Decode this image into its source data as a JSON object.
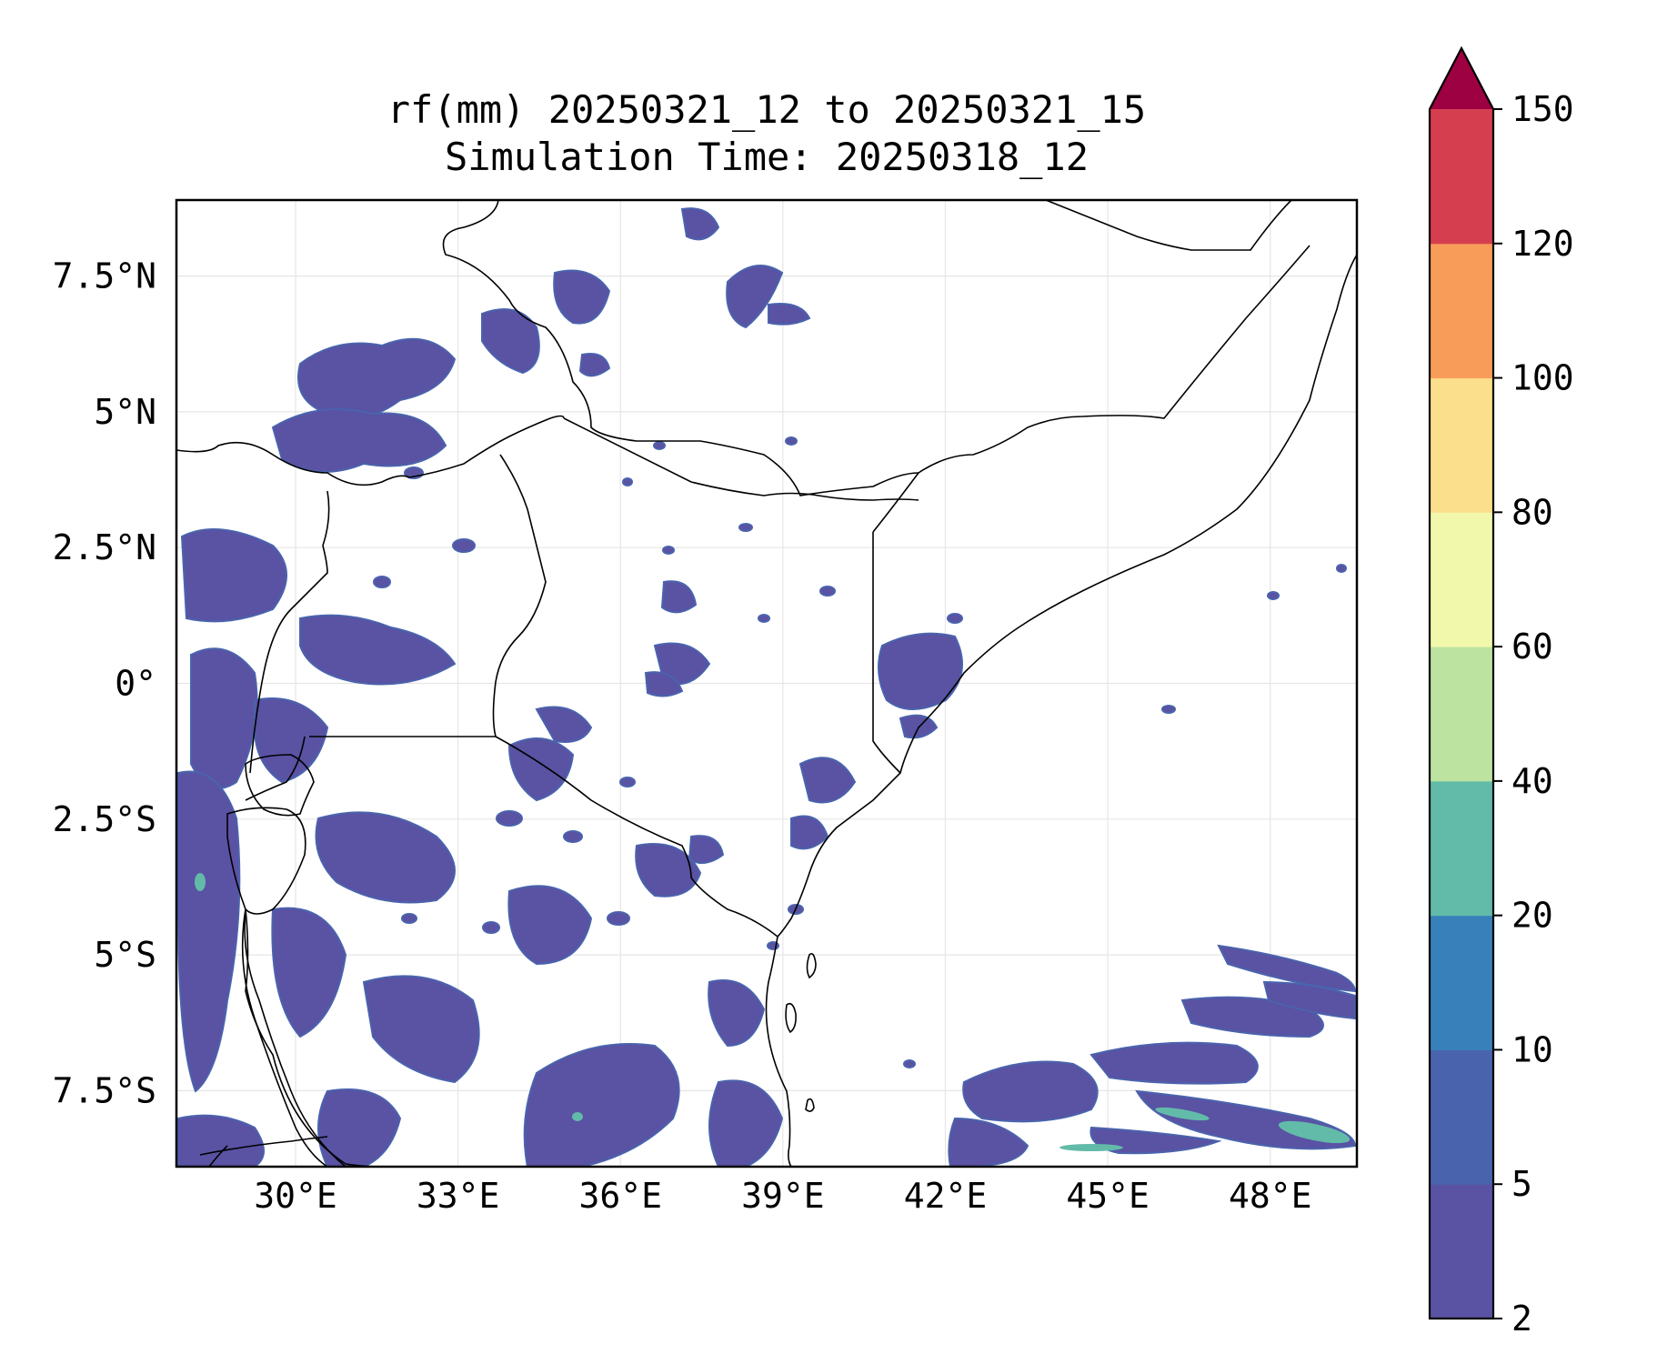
{
  "title": {
    "line1": "rf(mm) 20250321_12 to 20250321_15",
    "line2": "Simulation Time: 20250318_12"
  },
  "map": {
    "lon_range": [
      27.8,
      49.6
    ],
    "lat_range": [
      -8.9,
      8.9
    ],
    "x_ticks": [
      {
        "value": 30,
        "label": "30°E"
      },
      {
        "value": 33,
        "label": "33°E"
      },
      {
        "value": 36,
        "label": "36°E"
      },
      {
        "value": 39,
        "label": "39°E"
      },
      {
        "value": 42,
        "label": "42°E"
      },
      {
        "value": 45,
        "label": "45°E"
      },
      {
        "value": 48,
        "label": "48°E"
      }
    ],
    "y_ticks": [
      {
        "value": 7.5,
        "label": "7.5°N"
      },
      {
        "value": 5,
        "label": "5°N"
      },
      {
        "value": 2.5,
        "label": "2.5°N"
      },
      {
        "value": 0,
        "label": "0°"
      },
      {
        "value": -2.5,
        "label": "2.5°S"
      },
      {
        "value": -5,
        "label": "5°S"
      },
      {
        "value": -7.5,
        "label": "7.5°S"
      }
    ],
    "gridlines": true
  },
  "colorbar": {
    "levels": [
      2,
      5,
      10,
      20,
      40,
      60,
      80,
      100,
      120,
      150
    ],
    "labels": [
      "2",
      "5",
      "10",
      "20",
      "40",
      "60",
      "80",
      "100",
      "120",
      "150"
    ],
    "colors": [
      "#5a52a3",
      "#4a63ad",
      "#3880ba",
      "#62bba9",
      "#bde3a0",
      "#f1f8ac",
      "#fbdf8c",
      "#f89c5a",
      "#d53e4f"
    ],
    "extend_color": "#9e0142",
    "extend": "max"
  },
  "colors": {
    "rain_main": "#5a52a3",
    "rain_mid": "#4a63ad",
    "rain_high": "#62bba9",
    "border": "#000000"
  }
}
